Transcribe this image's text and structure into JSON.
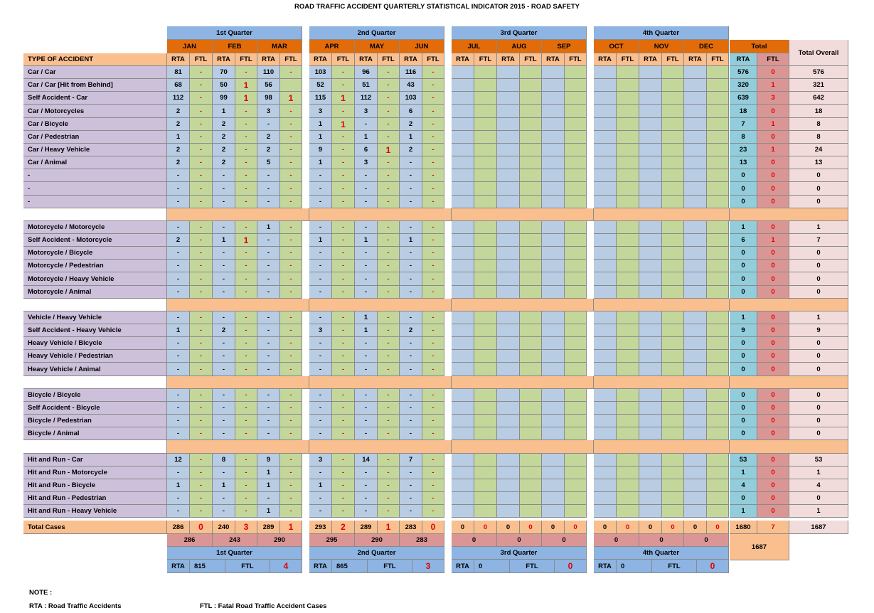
{
  "title": "ROAD TRAFFIC ACCIDENT QUARTERLY STATISTICAL INDICATOR 2015 - ROAD SAFETY",
  "header": {
    "type_label": "TYPE OF ACCIDENT",
    "quarters": [
      "1st Quarter",
      "2nd Quarter",
      "3rd Quarter",
      "4th Quarter"
    ],
    "months": [
      "JAN",
      "FEB",
      "MAR",
      "APR",
      "MAY",
      "JUN",
      "JUL",
      "AUG",
      "SEP",
      "OCT",
      "NOV",
      "DEC"
    ],
    "rta": "RTA",
    "ftl": "FTL",
    "total_label": "Total",
    "total_overall_label": "Total Overall"
  },
  "colors": {
    "quarter_header": "#8db4e2",
    "month_header": "#e26b0a",
    "type_bg": "#ccc0da",
    "header_row_bg": "#fabf8f",
    "rta_bg": "#b8cce4",
    "ftl_bg": "#c4d79b",
    "sep_bg": "#fabf8f",
    "total_rta_bg": "#92cddc",
    "total_ftl_bg": "#da9694",
    "overall_bg": "#f2dcdb",
    "fatal_red": "#e00000"
  },
  "rows": [
    {
      "name": "Car / Car",
      "v": [
        "81",
        "-",
        "70",
        "-",
        "110",
        "-",
        "103",
        "-",
        "96",
        "-",
        "116",
        "-",
        "",
        "",
        "",
        "",
        "",
        "",
        "",
        "",
        "",
        "",
        "",
        ""
      ],
      "t": [
        "576",
        "0",
        "576"
      ]
    },
    {
      "name": "Car / Car [Hit from Behind]",
      "v": [
        "68",
        "-",
        "50",
        "1",
        "56",
        "",
        "52",
        "-",
        "51",
        "-",
        "43",
        "-",
        "",
        "",
        "",
        "",
        "",
        "",
        "",
        "",
        "",
        "",
        "",
        ""
      ],
      "t": [
        "320",
        "1",
        "321"
      ]
    },
    {
      "name": "Self Accident - Car",
      "v": [
        "112",
        "-",
        "99",
        "1",
        "98",
        "1",
        "115",
        "1",
        "112",
        "-",
        "103",
        "-",
        "",
        "",
        "",
        "",
        "",
        "",
        "",
        "",
        "",
        "",
        "",
        ""
      ],
      "t": [
        "639",
        "3",
        "642"
      ]
    },
    {
      "name": "Car / Motorcycles",
      "v": [
        "2",
        "-",
        "1",
        "-",
        "3",
        "-",
        "3",
        "-",
        "3",
        "-",
        "6",
        "-",
        "",
        "",
        "",
        "",
        "",
        "",
        "",
        "",
        "",
        "",
        "",
        ""
      ],
      "t": [
        "18",
        "0",
        "18"
      ]
    },
    {
      "name": "Car / Bicycle",
      "v": [
        "2",
        "-",
        "2",
        "-",
        "-",
        "-",
        "1",
        "1",
        "-",
        "-",
        "2",
        "-",
        "",
        "",
        "",
        "",
        "",
        "",
        "",
        "",
        "",
        "",
        "",
        ""
      ],
      "t": [
        "7",
        "1",
        "8"
      ]
    },
    {
      "name": "Car / Pedestrian",
      "v": [
        "1",
        "-",
        "2",
        "-",
        "2",
        "-",
        "1",
        "-",
        "1",
        "-",
        "1",
        "-",
        "",
        "",
        "",
        "",
        "",
        "",
        "",
        "",
        "",
        "",
        "",
        ""
      ],
      "t": [
        "8",
        "0",
        "8"
      ]
    },
    {
      "name": "Car / Heavy Vehicle",
      "v": [
        "2",
        "-",
        "2",
        "-",
        "2",
        "-",
        "9",
        "-",
        "6",
        "1",
        "2",
        "-",
        "",
        "",
        "",
        "",
        "",
        "",
        "",
        "",
        "",
        "",
        "",
        ""
      ],
      "t": [
        "23",
        "1",
        "24"
      ]
    },
    {
      "name": "Car / Animal",
      "v": [
        "2",
        "-",
        "2",
        "-",
        "5",
        "-",
        "1",
        "-",
        "3",
        "-",
        "-",
        "-",
        "",
        "",
        "",
        "",
        "",
        "",
        "",
        "",
        "",
        "",
        "",
        ""
      ],
      "t": [
        "13",
        "0",
        "13"
      ]
    },
    {
      "name": "-",
      "v": [
        "-",
        "-",
        "-",
        "-",
        "-",
        "-",
        "-",
        "-",
        "-",
        "-",
        "-",
        "-",
        "",
        "",
        "",
        "",
        "",
        "",
        "",
        "",
        "",
        "",
        "",
        ""
      ],
      "t": [
        "0",
        "0",
        "0"
      ]
    },
    {
      "name": "-",
      "v": [
        "-",
        "-",
        "-",
        "-",
        "-",
        "-",
        "-",
        "-",
        "-",
        "-",
        "-",
        "-",
        "",
        "",
        "",
        "",
        "",
        "",
        "",
        "",
        "",
        "",
        "",
        ""
      ],
      "t": [
        "0",
        "0",
        "0"
      ]
    },
    {
      "name": "-",
      "v": [
        "-",
        "-",
        "-",
        "-",
        "-",
        "-",
        "-",
        "-",
        "-",
        "-",
        "-",
        "-",
        "",
        "",
        "",
        "",
        "",
        "",
        "",
        "",
        "",
        "",
        "",
        ""
      ],
      "t": [
        "0",
        "0",
        "0"
      ]
    },
    {
      "sep": true
    },
    {
      "name": "Motorcycle / Motorcycle",
      "v": [
        "-",
        "-",
        "-",
        "-",
        "1",
        "-",
        "-",
        "-",
        "-",
        "-",
        "-",
        "-",
        "",
        "",
        "",
        "",
        "",
        "",
        "",
        "",
        "",
        "",
        "",
        ""
      ],
      "t": [
        "1",
        "0",
        "1"
      ]
    },
    {
      "name": "Self Accident - Motorcycle",
      "v": [
        "2",
        "-",
        "1",
        "1",
        "-",
        "-",
        "1",
        "-",
        "1",
        "-",
        "1",
        "-",
        "",
        "",
        "",
        "",
        "",
        "",
        "",
        "",
        "",
        "",
        "",
        ""
      ],
      "t": [
        "6",
        "1",
        "7"
      ]
    },
    {
      "name": "Motorcycle / Bicycle",
      "v": [
        "-",
        "-",
        "-",
        "-",
        "-",
        "-",
        "-",
        "-",
        "-",
        "-",
        "-",
        "-",
        "",
        "",
        "",
        "",
        "",
        "",
        "",
        "",
        "",
        "",
        "",
        ""
      ],
      "t": [
        "0",
        "0",
        "0"
      ]
    },
    {
      "name": "Motorcycle / Pedestrian",
      "v": [
        "-",
        "-",
        "-",
        "-",
        "-",
        "-",
        "-",
        "-",
        "-",
        "-",
        "-",
        "-",
        "",
        "",
        "",
        "",
        "",
        "",
        "",
        "",
        "",
        "",
        "",
        ""
      ],
      "t": [
        "0",
        "0",
        "0"
      ]
    },
    {
      "name": "Motorcycle / Heavy Vehicle",
      "v": [
        "-",
        "-",
        "-",
        "-",
        "-",
        "-",
        "-",
        "-",
        "-",
        "-",
        "-",
        "-",
        "",
        "",
        "",
        "",
        "",
        "",
        "",
        "",
        "",
        "",
        "",
        ""
      ],
      "t": [
        "0",
        "0",
        "0"
      ]
    },
    {
      "name": "Motorcycle / Animal",
      "v": [
        "-",
        "-",
        "-",
        "-",
        "-",
        "-",
        "-",
        "-",
        "-",
        "-",
        "-",
        "-",
        "",
        "",
        "",
        "",
        "",
        "",
        "",
        "",
        "",
        "",
        "",
        ""
      ],
      "t": [
        "0",
        "0",
        "0"
      ]
    },
    {
      "sep": true
    },
    {
      "name": "Vehicle / Heavy Vehicle",
      "v": [
        "-",
        "-",
        "-",
        "-",
        "-",
        "-",
        "-",
        "-",
        "1",
        "-",
        "-",
        "-",
        "",
        "",
        "",
        "",
        "",
        "",
        "",
        "",
        "",
        "",
        "",
        ""
      ],
      "t": [
        "1",
        "0",
        "1"
      ]
    },
    {
      "name": "Self Accident - Heavy Vehicle",
      "v": [
        "1",
        "-",
        "2",
        "-",
        "-",
        "-",
        "3",
        "-",
        "1",
        "-",
        "2",
        "-",
        "",
        "",
        "",
        "",
        "",
        "",
        "",
        "",
        "",
        "",
        "",
        ""
      ],
      "t": [
        "9",
        "0",
        "9"
      ]
    },
    {
      "name": "Heavy Vehicle / Bicycle",
      "v": [
        "-",
        "-",
        "-",
        "-",
        "-",
        "-",
        "-",
        "-",
        "-",
        "-",
        "-",
        "-",
        "",
        "",
        "",
        "",
        "",
        "",
        "",
        "",
        "",
        "",
        "",
        ""
      ],
      "t": [
        "0",
        "0",
        "0"
      ]
    },
    {
      "name": "Heavy Vehicle / Pedestrian",
      "v": [
        "-",
        "-",
        "-",
        "-",
        "-",
        "-",
        "-",
        "-",
        "-",
        "-",
        "-",
        "-",
        "",
        "",
        "",
        "",
        "",
        "",
        "",
        "",
        "",
        "",
        "",
        ""
      ],
      "t": [
        "0",
        "0",
        "0"
      ]
    },
    {
      "name": "Heavy Vehicle / Animal",
      "v": [
        "-",
        "-",
        "-",
        "-",
        "-",
        "-",
        "-",
        "-",
        "-",
        "-",
        "-",
        "-",
        "",
        "",
        "",
        "",
        "",
        "",
        "",
        "",
        "",
        "",
        "",
        ""
      ],
      "t": [
        "0",
        "0",
        "0"
      ]
    },
    {
      "sep": true
    },
    {
      "name": "Bicycle / Bicycle",
      "v": [
        "-",
        "-",
        "-",
        "-",
        "-",
        "-",
        "-",
        "-",
        "-",
        "-",
        "-",
        "-",
        "",
        "",
        "",
        "",
        "",
        "",
        "",
        "",
        "",
        "",
        "",
        ""
      ],
      "t": [
        "0",
        "0",
        "0"
      ]
    },
    {
      "name": "Self Accident - Bicycle",
      "v": [
        "-",
        "-",
        "-",
        "-",
        "-",
        "-",
        "-",
        "-",
        "-",
        "-",
        "-",
        "-",
        "",
        "",
        "",
        "",
        "",
        "",
        "",
        "",
        "",
        "",
        "",
        ""
      ],
      "t": [
        "0",
        "0",
        "0"
      ]
    },
    {
      "name": "Bicycle / Pedestrian",
      "v": [
        "-",
        "-",
        "-",
        "-",
        "-",
        "-",
        "-",
        "-",
        "-",
        "-",
        "-",
        "-",
        "",
        "",
        "",
        "",
        "",
        "",
        "",
        "",
        "",
        "",
        "",
        ""
      ],
      "t": [
        "0",
        "0",
        "0"
      ]
    },
    {
      "name": "Bicycle / Animal",
      "v": [
        "-",
        "-",
        "-",
        "-",
        "-",
        "-",
        "-",
        "-",
        "-",
        "-",
        "-",
        "-",
        "",
        "",
        "",
        "",
        "",
        "",
        "",
        "",
        "",
        "",
        "",
        ""
      ],
      "t": [
        "0",
        "0",
        "0"
      ]
    },
    {
      "sep": true
    },
    {
      "name": "Hit and Run - Car",
      "v": [
        "12",
        "-",
        "8",
        "-",
        "9",
        "-",
        "3",
        "-",
        "14",
        "-",
        "7",
        "-",
        "",
        "",
        "",
        "",
        "",
        "",
        "",
        "",
        "",
        "",
        "",
        ""
      ],
      "t": [
        "53",
        "0",
        "53"
      ]
    },
    {
      "name": "Hit and Run - Motorcycle",
      "v": [
        "-",
        "-",
        "-",
        "-",
        "1",
        "-",
        "-",
        "-",
        "-",
        "-",
        "-",
        "-",
        "",
        "",
        "",
        "",
        "",
        "",
        "",
        "",
        "",
        "",
        "",
        ""
      ],
      "t": [
        "1",
        "0",
        "1"
      ]
    },
    {
      "name": "Hit and Run - Bicycle",
      "v": [
        "1",
        "-",
        "1",
        "-",
        "1",
        "-",
        "1",
        "-",
        "-",
        "-",
        "-",
        "-",
        "",
        "",
        "",
        "",
        "",
        "",
        "",
        "",
        "",
        "",
        "",
        ""
      ],
      "t": [
        "4",
        "0",
        "4"
      ]
    },
    {
      "name": "Hit and Run - Pedestrian",
      "v": [
        "-",
        "-",
        "-",
        "-",
        "-",
        "-",
        "-",
        "-",
        "-",
        "-",
        "-",
        "-",
        "",
        "",
        "",
        "",
        "",
        "",
        "",
        "",
        "",
        "",
        "",
        ""
      ],
      "t": [
        "0",
        "0",
        "0"
      ]
    },
    {
      "name": "Hit and Run - Heavy Vehicle",
      "v": [
        "-",
        "-",
        "-",
        "-",
        "1",
        "-",
        "-",
        "-",
        "-",
        "-",
        "-",
        "-",
        "",
        "",
        "",
        "",
        "",
        "",
        "",
        "",
        "",
        "",
        "",
        ""
      ],
      "t": [
        "1",
        "0",
        "1"
      ]
    }
  ],
  "total_cases": {
    "label": "Total Cases",
    "v": [
      "286",
      "0",
      "240",
      "3",
      "289",
      "1",
      "293",
      "2",
      "289",
      "1",
      "283",
      "0",
      "0",
      "0",
      "0",
      "0",
      "0",
      "0",
      "0",
      "0",
      "0",
      "0",
      "0",
      "0"
    ],
    "t": [
      "1680",
      "7",
      "1687"
    ]
  },
  "month_totals": [
    "286",
    "243",
    "290",
    "295",
    "290",
    "283",
    "0",
    "0",
    "0",
    "0",
    "0",
    "0"
  ],
  "grand_total": "1687",
  "quarter_summary": [
    {
      "label": "1st Quarter",
      "rta_label": "RTA",
      "rta": "815",
      "ftl_label": "FTL",
      "ftl": "4"
    },
    {
      "label": "2nd Quarter",
      "rta_label": "RTA",
      "rta": "865",
      "ftl_label": "FTL",
      "ftl": "3"
    },
    {
      "label": "3rd Quarter",
      "rta_label": "RTA",
      "rta": "0",
      "ftl_label": "FTL",
      "ftl": "0"
    },
    {
      "label": "4th Quarter",
      "rta_label": "RTA",
      "rta": "0",
      "ftl_label": "FTL",
      "ftl": "0"
    }
  ],
  "notes": {
    "label": "NOTE :",
    "rta": "RTA  :  Road Traffic Accidents",
    "ftl": "FTL  :  Fatal Road Traffic Accident Cases"
  }
}
